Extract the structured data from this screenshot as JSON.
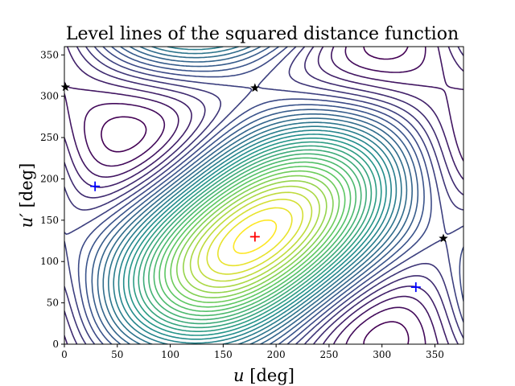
{
  "chart_data": {
    "type": "contour",
    "title": "Level lines of the squared distance function",
    "xlabel_var": "u",
    "xlabel_unit": "[deg]",
    "ylabel_var": "u′",
    "ylabel_unit": "[deg]",
    "xlim": [
      0,
      377
    ],
    "ylim": [
      0,
      360
    ],
    "xticks": [
      0,
      50,
      100,
      150,
      200,
      250,
      300,
      350
    ],
    "yticks": [
      0,
      50,
      100,
      150,
      200,
      250,
      300,
      350
    ],
    "grid": false,
    "colormap": [
      "#440154",
      "#3b528b",
      "#21918c",
      "#5ec962",
      "#fde725"
    ],
    "minimum": {
      "u": 180,
      "up": 130,
      "color": "#ff0000",
      "marker": "plus"
    },
    "saddles": [
      {
        "u": 1,
        "up": 311,
        "marker": "star",
        "color": "#000000"
      },
      {
        "u": 180,
        "up": 310,
        "marker": "star",
        "color": "#000000"
      },
      {
        "u": 358,
        "up": 128,
        "marker": "star",
        "color": "#000000"
      }
    ],
    "maxima": [
      {
        "u": 29,
        "up": 191,
        "marker": "plus",
        "color": "#0000ff"
      },
      {
        "u": 332,
        "up": 69,
        "marker": "plus",
        "color": "#0000ff"
      }
    ]
  }
}
